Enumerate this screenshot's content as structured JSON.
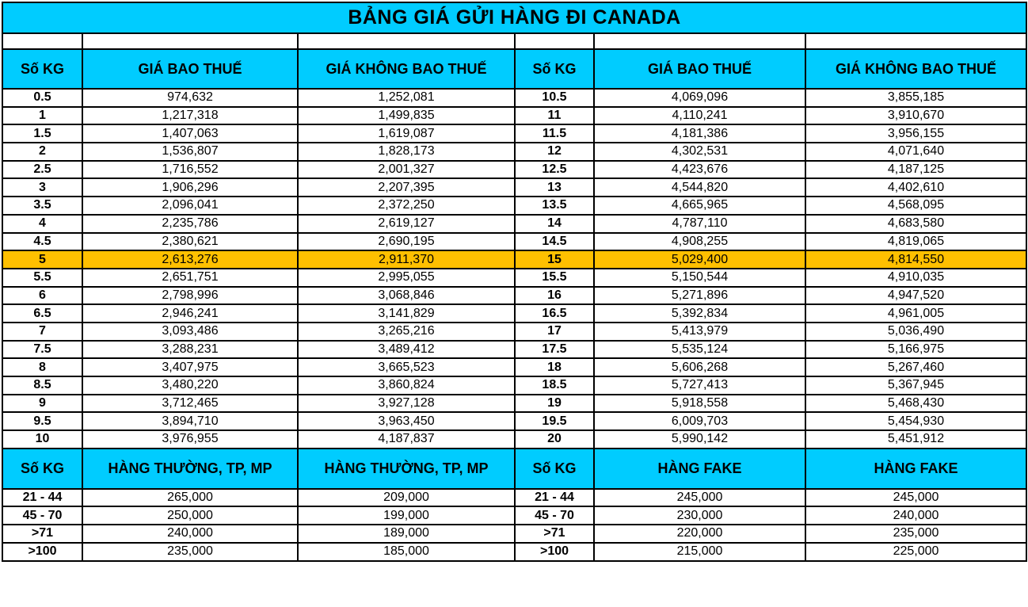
{
  "title": "BẢNG GIÁ GỬI HÀNG ĐI CANADA",
  "header": {
    "kg": "Số KG",
    "tax_incl": "GIÁ BAO THUẾ",
    "tax_excl": "GIÁ KHÔNG BAO THUẾ"
  },
  "rows": [
    {
      "kg_l": "0.5",
      "a_l": "974,632",
      "b_l": "1,252,081",
      "kg_r": "10.5",
      "a_r": "4,069,096",
      "b_r": "3,855,185"
    },
    {
      "kg_l": "1",
      "a_l": "1,217,318",
      "b_l": "1,499,835",
      "kg_r": "11",
      "a_r": "4,110,241",
      "b_r": "3,910,670"
    },
    {
      "kg_l": "1.5",
      "a_l": "1,407,063",
      "b_l": "1,619,087",
      "kg_r": "11.5",
      "a_r": "4,181,386",
      "b_r": "3,956,155"
    },
    {
      "kg_l": "2",
      "a_l": "1,536,807",
      "b_l": "1,828,173",
      "kg_r": "12",
      "a_r": "4,302,531",
      "b_r": "4,071,640"
    },
    {
      "kg_l": "2.5",
      "a_l": "1,716,552",
      "b_l": "2,001,327",
      "kg_r": "12.5",
      "a_r": "4,423,676",
      "b_r": "4,187,125"
    },
    {
      "kg_l": "3",
      "a_l": "1,906,296",
      "b_l": "2,207,395",
      "kg_r": "13",
      "a_r": "4,544,820",
      "b_r": "4,402,610"
    },
    {
      "kg_l": "3.5",
      "a_l": "2,096,041",
      "b_l": "2,372,250",
      "kg_r": "13.5",
      "a_r": "4,665,965",
      "b_r": "4,568,095"
    },
    {
      "kg_l": "4",
      "a_l": "2,235,786",
      "b_l": "2,619,127",
      "kg_r": "14",
      "a_r": "4,787,110",
      "b_r": "4,683,580"
    },
    {
      "kg_l": "4.5",
      "a_l": "2,380,621",
      "b_l": "2,690,195",
      "kg_r": "14.5",
      "a_r": "4,908,255",
      "b_r": "4,819,065"
    },
    {
      "kg_l": "5",
      "a_l": "2,613,276",
      "b_l": "2,911,370",
      "kg_r": "15",
      "a_r": "5,029,400",
      "b_r": "4,814,550",
      "highlight": true
    },
    {
      "kg_l": "5.5",
      "a_l": "2,651,751",
      "b_l": "2,995,055",
      "kg_r": "15.5",
      "a_r": "5,150,544",
      "b_r": "4,910,035"
    },
    {
      "kg_l": "6",
      "a_l": "2,798,996",
      "b_l": "3,068,846",
      "kg_r": "16",
      "a_r": "5,271,896",
      "b_r": "4,947,520"
    },
    {
      "kg_l": "6.5",
      "a_l": "2,946,241",
      "b_l": "3,141,829",
      "kg_r": "16.5",
      "a_r": "5,392,834",
      "b_r": "4,961,005"
    },
    {
      "kg_l": "7",
      "a_l": "3,093,486",
      "b_l": "3,265,216",
      "kg_r": "17",
      "a_r": "5,413,979",
      "b_r": "5,036,490"
    },
    {
      "kg_l": "7.5",
      "a_l": "3,288,231",
      "b_l": "3,489,412",
      "kg_r": "17.5",
      "a_r": "5,535,124",
      "b_r": "5,166,975"
    },
    {
      "kg_l": "8",
      "a_l": "3,407,975",
      "b_l": "3,665,523",
      "kg_r": "18",
      "a_r": "5,606,268",
      "b_r": "5,267,460"
    },
    {
      "kg_l": "8.5",
      "a_l": "3,480,220",
      "b_l": "3,860,824",
      "kg_r": "18.5",
      "a_r": "5,727,413",
      "b_r": "5,367,945"
    },
    {
      "kg_l": "9",
      "a_l": "3,712,465",
      "b_l": "3,927,128",
      "kg_r": "19",
      "a_r": "5,918,558",
      "b_r": "5,468,430"
    },
    {
      "kg_l": "9.5",
      "a_l": "3,894,710",
      "b_l": "3,963,450",
      "kg_r": "19.5",
      "a_r": "6,009,703",
      "b_r": "5,454,930"
    },
    {
      "kg_l": "10",
      "a_l": "3,976,955",
      "b_l": "4,187,837",
      "kg_r": "20",
      "a_r": "5,990,142",
      "b_r": "5,451,912"
    }
  ],
  "header2": {
    "kg": "Số KG",
    "normal": "HÀNG THƯỜNG, TP, MP",
    "fake": "HÀNG FAKE"
  },
  "bulk_rows": [
    {
      "kg_l": "21 - 44",
      "a_l": "265,000",
      "b_l": "209,000",
      "kg_r": "21 - 44",
      "a_r": "245,000",
      "b_r": "245,000"
    },
    {
      "kg_l": "45 - 70",
      "a_l": "250,000",
      "b_l": "199,000",
      "kg_r": "45 - 70",
      "a_r": "230,000",
      "b_r": "240,000"
    },
    {
      "kg_l": ">71",
      "a_l": "240,000",
      "b_l": "189,000",
      "kg_r": ">71",
      "a_r": "220,000",
      "b_r": "235,000"
    },
    {
      "kg_l": ">100",
      "a_l": "235,000",
      "b_l": "185,000",
      "kg_r": ">100",
      "a_r": "215,000",
      "b_r": "225,000"
    }
  ],
  "colors": {
    "header_bg": "#00ccff",
    "highlight_bg": "#ffc000"
  }
}
